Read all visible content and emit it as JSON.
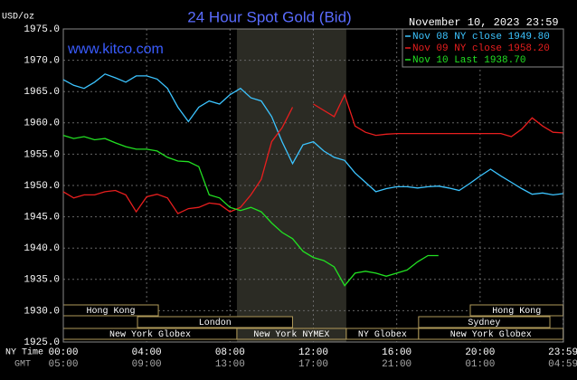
{
  "chart_data": {
    "type": "line",
    "title": "24 Hour Spot Gold (Bid)",
    "timestamp": "November 10, 2023 23:59",
    "website": "www.kitco.com",
    "y_label": "USD/oz",
    "x_label": "NY Time",
    "x2_label": "GMT",
    "x": [
      0,
      0.5,
      1,
      1.5,
      2,
      2.5,
      3,
      3.5,
      4,
      4.5,
      5,
      5.5,
      6,
      6.5,
      7,
      7.5,
      8,
      8.5,
      9,
      9.5,
      10,
      10.5,
      11,
      11.5,
      12,
      12.5,
      13,
      13.5,
      14,
      14.5,
      15,
      15.5,
      16,
      16.5,
      17,
      17.5,
      18,
      18.5,
      19,
      19.5,
      20,
      20.5,
      21,
      21.5,
      22,
      22.5,
      23,
      23.5,
      23.983
    ],
    "series": [
      {
        "name": "Nov 08 NY close 1949.80",
        "color": "#3cc4ff",
        "values": [
          1966.9,
          1966,
          1965.5,
          1966.5,
          1967.8,
          1967.2,
          1966.5,
          1967.5,
          1967.5,
          1967,
          1965.5,
          1962.5,
          1960.2,
          1962.5,
          1963.5,
          1963,
          1964.5,
          1965.5,
          1964,
          1963.5,
          1961,
          1957,
          1953.5,
          1956.5,
          1957,
          1955.5,
          1954.5,
          1954,
          1952,
          1950.5,
          1949,
          1949.5,
          1949.8,
          1949.8,
          1949.6,
          1949.8,
          1949.9,
          1949.6,
          1949.2,
          1950.3,
          1951.5,
          1952.6,
          1951.5,
          1950.5,
          1949.5,
          1948.6,
          1948.8,
          1948.5,
          1948.7
        ]
      },
      {
        "name": "Nov 09 NY close 1958.20",
        "color": "#e81e1e",
        "values": [
          1949,
          1948,
          1948.5,
          1948.5,
          1949,
          1949.2,
          1948.5,
          1945.8,
          1948.2,
          1948.6,
          1948,
          1945.5,
          1946.3,
          1946.5,
          1947.2,
          1947,
          1945.8,
          1946.5,
          1948.5,
          1951,
          1957,
          1959.2,
          1962.5,
          null,
          1963,
          1962,
          1961,
          1964.5,
          1959.5,
          1958.5,
          1958,
          1958.2,
          1958.3,
          1958.3,
          1958.3,
          1958.3,
          1958.3,
          1958.3,
          1958.3,
          1958.3,
          1958.3,
          1958.3,
          1958.3,
          1957.8,
          1959,
          1960.8,
          1959.5,
          1958.5,
          1958.4
        ]
      },
      {
        "name": "Nov 10 Last 1938.70",
        "color": "#22e022",
        "values": [
          1958,
          1957.5,
          1957.8,
          1957.3,
          1957.5,
          1956.8,
          1956.2,
          1955.8,
          1955.8,
          1955.5,
          1954.5,
          1953.9,
          1953.8,
          1953,
          1948.5,
          1948,
          1946.5,
          1946,
          1946.5,
          1945.8,
          1944,
          1942.5,
          1941.5,
          1939.5,
          1938.5,
          1938,
          1937,
          1934,
          1936,
          1936.3,
          1936,
          1935.5,
          1936,
          1936.5,
          1937.8,
          1938.8,
          1938.8,
          null,
          null,
          null,
          null,
          null,
          null,
          null,
          null,
          null,
          null,
          null,
          null
        ]
      }
    ],
    "xlim": [
      0,
      24
    ],
    "xticks": [
      {
        "value": 0,
        "label": "00:00"
      },
      {
        "value": 4,
        "label": "04:00"
      },
      {
        "value": 8,
        "label": "08:00"
      },
      {
        "value": 12,
        "label": "12:00"
      },
      {
        "value": 16,
        "label": "16:00"
      },
      {
        "value": 20,
        "label": "20:00"
      },
      {
        "value": 23.983,
        "label": "23:59"
      }
    ],
    "x2ticks": [
      "05:00",
      "09:00",
      "13:00",
      "17:00",
      "21:00",
      "01:00",
      "04:59"
    ],
    "ylim": [
      1925,
      1975
    ],
    "yticks": [
      {
        "value": 1925,
        "label": "1925.0"
      },
      {
        "value": 1930,
        "label": "1930.0"
      },
      {
        "value": 1935,
        "label": "1935.0"
      },
      {
        "value": 1940,
        "label": "1940.0"
      },
      {
        "value": 1945,
        "label": "1945.0"
      },
      {
        "value": 1950,
        "label": "1950.0"
      },
      {
        "value": 1955,
        "label": "1955.0"
      },
      {
        "value": 1960,
        "label": "1960.0"
      },
      {
        "value": 1965,
        "label": "1965.0"
      },
      {
        "value": 1970,
        "label": "1970.0"
      },
      {
        "value": 1975,
        "label": "1975.0"
      }
    ],
    "grid": true,
    "legend": "top-right",
    "session_rows": [
      [
        {
          "name": "Hong Kong",
          "start": 0,
          "end": 4.56
        },
        {
          "name": "Hong Kong",
          "start": 19.53,
          "end": 23.983
        }
      ],
      [
        {
          "name": "London",
          "start": 3.56,
          "end": 11.0
        },
        {
          "name": "Sydney",
          "start": 17.05,
          "end": 23.35
        }
      ],
      [
        {
          "name": "New York Globex",
          "start": 0,
          "end": 8.33
        },
        {
          "name": "New York NYMEX",
          "start": 8.33,
          "end": 13.58,
          "highlight": true
        },
        {
          "name": "NY Globex",
          "start": 13.58,
          "end": 17.05
        },
        {
          "name": "New York Globex",
          "start": 17.05,
          "end": 23.983
        }
      ]
    ]
  }
}
